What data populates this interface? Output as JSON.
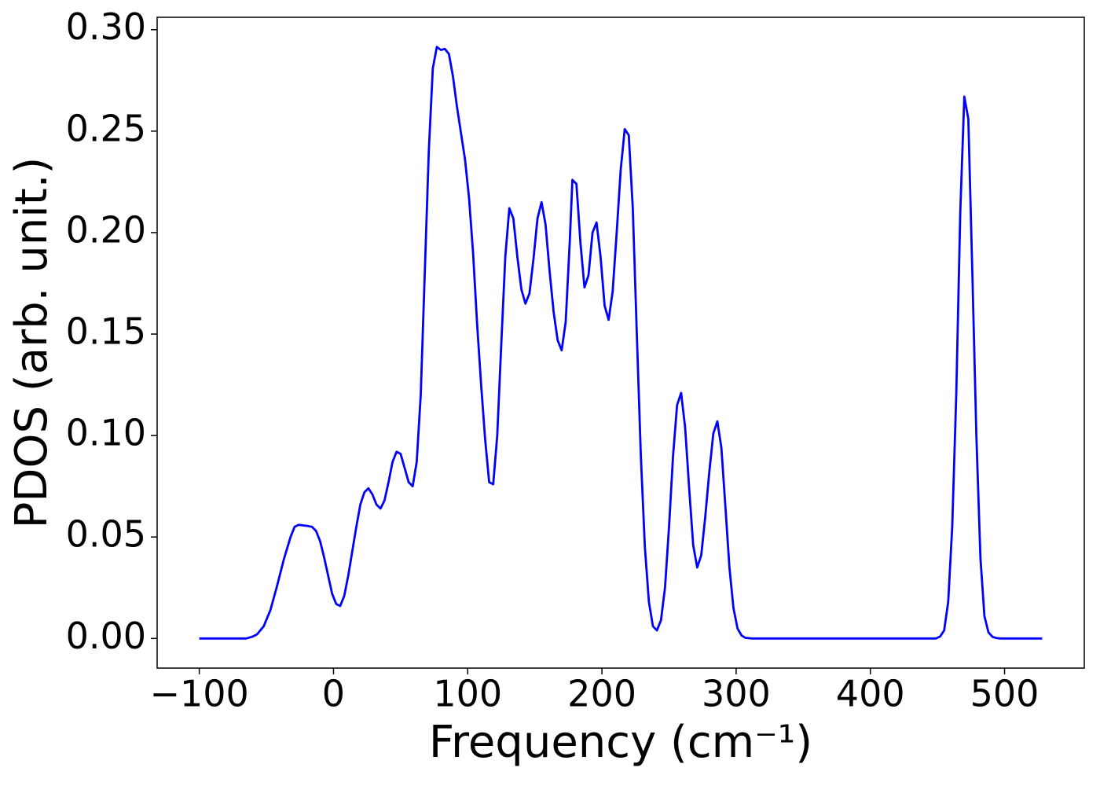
{
  "chart_data": {
    "type": "line",
    "xlabel": "Frequency (cm⁻¹)",
    "ylabel": "PDOS (arb. unit.)",
    "xlim": [
      -131.4,
      559.4
    ],
    "ylim": [
      -0.0146,
      0.3061
    ],
    "xticks": [
      {
        "value": -100,
        "label": "−100"
      },
      0,
      100,
      200,
      300,
      400,
      500
    ],
    "yticks": [
      {
        "value": 0,
        "label": "0.00"
      },
      {
        "value": 0.05,
        "label": "0.05"
      },
      {
        "value": 0.1,
        "label": "0.10"
      },
      {
        "value": 0.15,
        "label": "0.15"
      },
      {
        "value": 0.2,
        "label": "0.20"
      },
      {
        "value": 0.25,
        "label": "0.25"
      },
      {
        "value": 0.3,
        "label": "0.30"
      }
    ],
    "x": [
      -100,
      -65,
      -60,
      -57,
      -52,
      -47,
      -42,
      -37,
      -32,
      -29,
      -26,
      -20,
      -16,
      -13,
      -10,
      -7,
      -4,
      -1,
      2,
      5,
      8,
      11,
      14,
      17,
      20,
      23,
      26,
      29,
      32,
      35,
      38,
      41,
      44,
      47,
      50,
      53,
      56,
      59,
      62,
      65,
      68,
      71,
      74,
      77,
      80,
      83,
      86,
      89,
      92,
      95,
      98,
      101,
      104,
      107,
      110,
      113,
      116,
      119,
      122,
      125,
      128,
      131,
      134,
      137,
      140,
      143,
      146,
      149,
      152,
      155,
      158,
      161,
      164,
      167,
      170,
      173,
      176,
      178,
      181,
      184,
      187,
      190,
      193,
      196,
      199,
      202,
      205,
      208,
      211,
      214,
      217,
      220,
      223,
      226,
      229,
      232,
      235,
      238,
      241,
      244,
      247,
      250,
      253,
      256,
      259,
      262,
      265,
      268,
      271,
      274,
      277,
      280,
      283,
      286,
      289,
      292,
      295,
      298,
      301,
      304,
      307,
      312,
      449,
      452,
      455,
      458,
      461,
      464,
      467,
      470,
      473,
      476,
      479,
      482,
      485,
      488,
      491,
      494,
      497,
      528
    ],
    "series": [
      {
        "name": "PDOS",
        "color": "#0000ff",
        "values": [
          0,
          0,
          0.001,
          0.002,
          0.006,
          0.014,
          0.026,
          0.039,
          0.05,
          0.055,
          0.056,
          0.0555,
          0.055,
          0.053,
          0.048,
          0.04,
          0.031,
          0.022,
          0.017,
          0.016,
          0.021,
          0.031,
          0.043,
          0.055,
          0.066,
          0.072,
          0.074,
          0.071,
          0.066,
          0.064,
          0.068,
          0.077,
          0.087,
          0.092,
          0.091,
          0.084,
          0.077,
          0.075,
          0.087,
          0.12,
          0.18,
          0.24,
          0.281,
          0.2915,
          0.29,
          0.2905,
          0.288,
          0.277,
          0.262,
          0.249,
          0.236,
          0.217,
          0.19,
          0.155,
          0.125,
          0.098,
          0.077,
          0.076,
          0.1,
          0.145,
          0.188,
          0.212,
          0.207,
          0.188,
          0.172,
          0.165,
          0.17,
          0.187,
          0.207,
          0.215,
          0.204,
          0.181,
          0.161,
          0.147,
          0.142,
          0.156,
          0.195,
          0.226,
          0.224,
          0.195,
          0.173,
          0.179,
          0.2,
          0.205,
          0.188,
          0.164,
          0.157,
          0.171,
          0.2,
          0.231,
          0.251,
          0.248,
          0.212,
          0.15,
          0.09,
          0.045,
          0.018,
          0.006,
          0.004,
          0.009,
          0.025,
          0.055,
          0.09,
          0.115,
          0.121,
          0.104,
          0.074,
          0.046,
          0.035,
          0.041,
          0.06,
          0.082,
          0.101,
          0.107,
          0.094,
          0.065,
          0.035,
          0.015,
          0.005,
          0.0015,
          0.0003,
          0,
          0,
          0.001,
          0.004,
          0.018,
          0.055,
          0.12,
          0.21,
          0.267,
          0.256,
          0.18,
          0.1,
          0.04,
          0.011,
          0.003,
          0.0008,
          0.0002,
          0,
          0
        ]
      }
    ]
  }
}
